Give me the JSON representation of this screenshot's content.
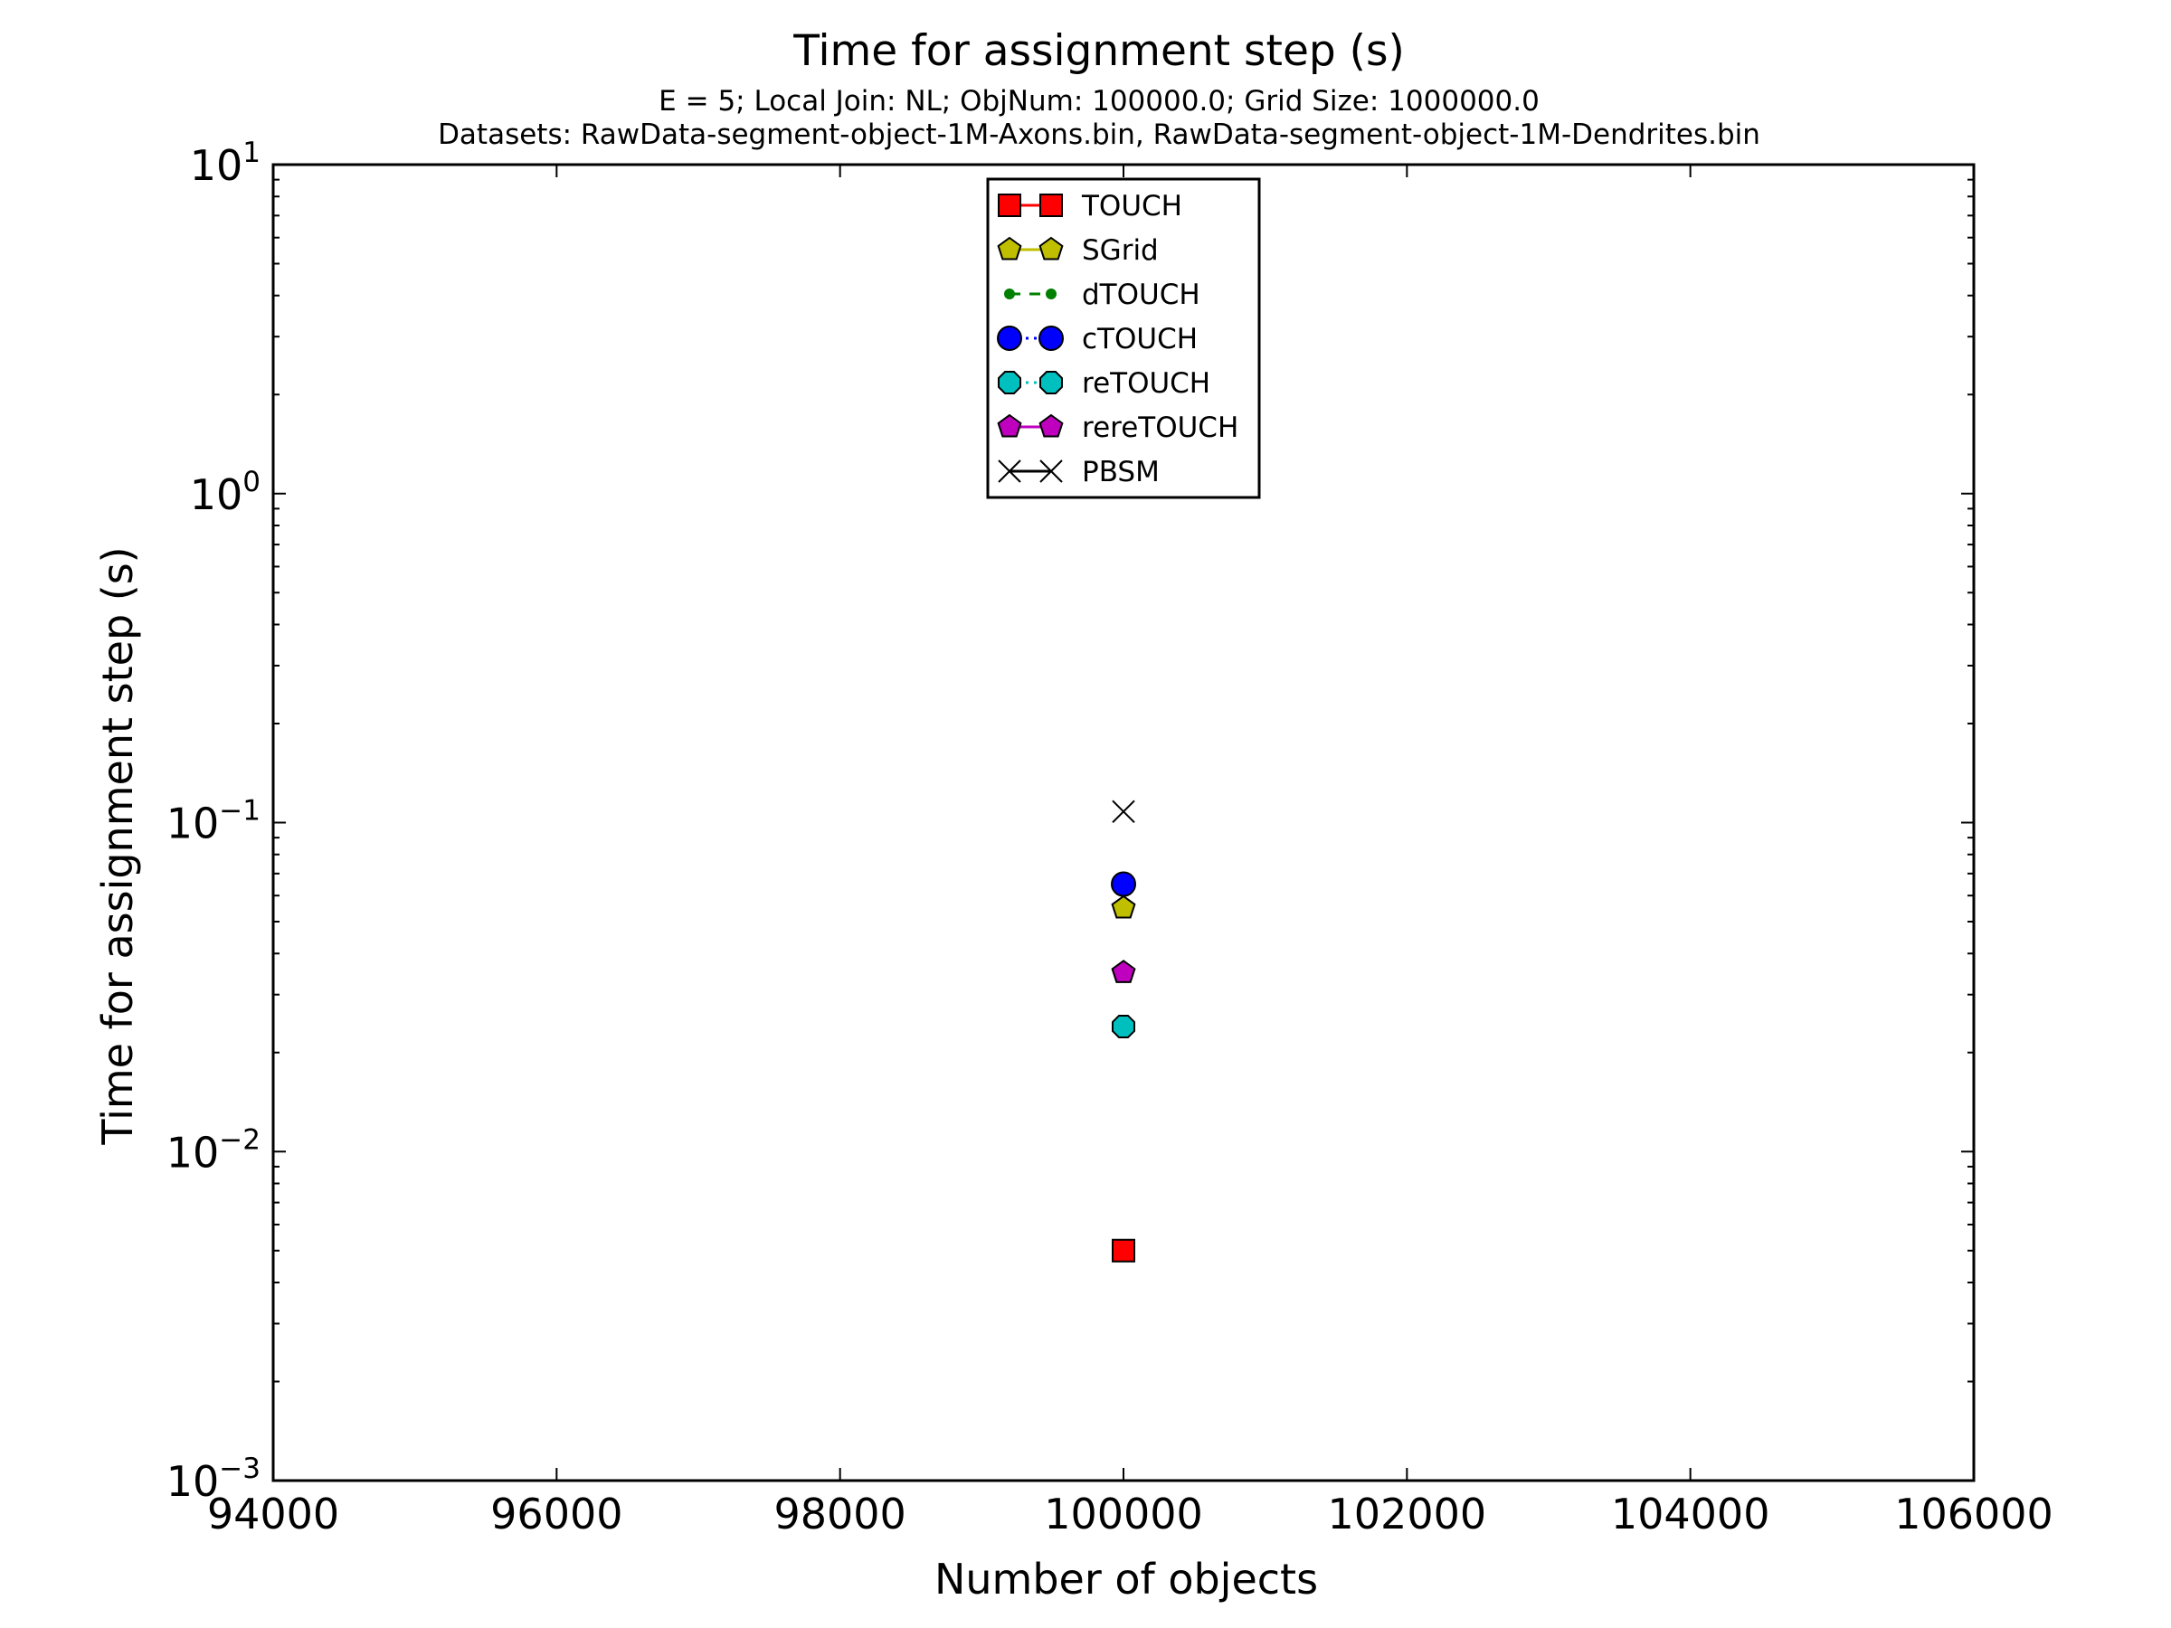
{
  "chart_data": {
    "type": "scatter",
    "title": "Time for assignment step (s)",
    "subtitle_lines": [
      "E = 5; Local Join: NL; ObjNum: 100000.0; Grid Size: 1000000.0",
      "Datasets: RawData-segment-object-1M-Axons.bin, RawData-segment-object-1M-Dendrites.bin"
    ],
    "xlabel": "Number of objects",
    "ylabel": "Time for assignment step (s)",
    "xlim": [
      94000,
      106000
    ],
    "ylim": [
      0.001,
      10
    ],
    "yscale": "log",
    "x_ticks": [
      94000,
      96000,
      98000,
      100000,
      102000,
      104000,
      106000
    ],
    "x_tick_labels": [
      "94000",
      "96000",
      "98000",
      "100000",
      "102000",
      "104000",
      "106000"
    ],
    "y_ticks": [
      {
        "value": 0.001,
        "base": "10",
        "exp": "−3"
      },
      {
        "value": 0.01,
        "base": "10",
        "exp": "−2"
      },
      {
        "value": 0.1,
        "base": "10",
        "exp": "−1"
      },
      {
        "value": 1,
        "base": "10",
        "exp": "0"
      },
      {
        "value": 10,
        "base": "10",
        "exp": "1"
      }
    ],
    "legend_position": "top-center",
    "series": [
      {
        "name": "TOUCH",
        "marker": "square",
        "line": "solid",
        "color": "#ff0000",
        "x": [
          100000
        ],
        "y": [
          0.005
        ]
      },
      {
        "name": "SGrid",
        "marker": "pentagon",
        "line": "solid",
        "color": "#bfbf00",
        "x": [
          100000
        ],
        "y": [
          0.055
        ]
      },
      {
        "name": "dTOUCH",
        "marker": "point",
        "line": "dashed",
        "color": "#008000",
        "x": [],
        "y": []
      },
      {
        "name": "cTOUCH",
        "marker": "circle",
        "line": "dotted",
        "color": "#0000ff",
        "x": [
          100000
        ],
        "y": [
          0.065
        ]
      },
      {
        "name": "reTOUCH",
        "marker": "octagon",
        "line": "dotted",
        "color": "#00bfbf",
        "x": [
          100000
        ],
        "y": [
          0.024
        ]
      },
      {
        "name": "rereTOUCH",
        "marker": "pentagon",
        "line": "solid",
        "color": "#bf00bf",
        "x": [
          100000
        ],
        "y": [
          0.035
        ]
      },
      {
        "name": "PBSM",
        "marker": "x",
        "line": "solid",
        "color": "#000000",
        "x": [
          100000
        ],
        "y": [
          0.108
        ]
      }
    ]
  }
}
